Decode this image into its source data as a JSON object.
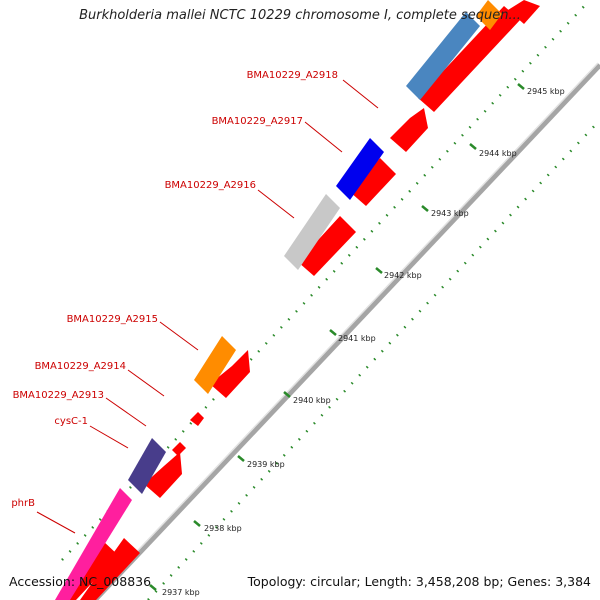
{
  "title": "Burkholderia mallei NCTC 10229 chromosome I, complete sequen...",
  "footer": {
    "accession": "Accession: NC_008836",
    "topology": "Topology: circular; Length: 3,458,208 bp; Genes: 3,384"
  },
  "colors": {
    "forward": "#ff0000",
    "gene_label": "#cc0000",
    "tick": "#2a8a2a",
    "backbone": "#999999"
  },
  "gene_labels": [
    {
      "text": "BMA10229_A2918"
    },
    {
      "text": "BMA10229_A2917"
    },
    {
      "text": "BMA10229_A2916"
    },
    {
      "text": "BMA10229_A2915"
    },
    {
      "text": "BMA10229_A2914"
    },
    {
      "text": "BMA10229_A2913"
    },
    {
      "text": "cysC-1"
    },
    {
      "text": "phrB"
    }
  ],
  "ticks": [
    {
      "text": "2937 kbp"
    },
    {
      "text": "2938 kbp"
    },
    {
      "text": "2939 kbp"
    },
    {
      "text": "2940 kbp"
    },
    {
      "text": "2941 kbp"
    },
    {
      "text": "2942 kbp"
    },
    {
      "text": "2943 kbp"
    },
    {
      "text": "2944 kbp"
    },
    {
      "text": "2945 kbp"
    }
  ]
}
